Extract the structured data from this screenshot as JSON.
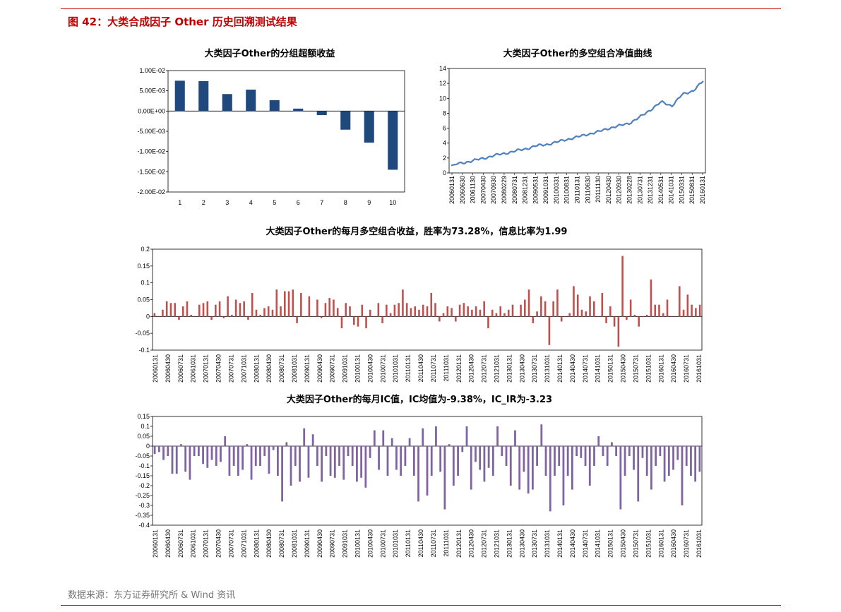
{
  "figure": {
    "title": "图 42：大类合成因子  Other  历史回溯测试结果",
    "source": "数据来源：东方证券研究所  &  Wind 资讯"
  },
  "dates": [
    "20060131",
    "20060430",
    "20060731",
    "20061031",
    "20070131",
    "20070430",
    "20070731",
    "20071031",
    "20080131",
    "20080430",
    "20080731",
    "20081031",
    "20090131",
    "20090430",
    "20090731",
    "20091031",
    "20100131",
    "20100430",
    "20100731",
    "20101031",
    "20110131",
    "20110430",
    "20110731",
    "20111031",
    "20120131",
    "20120430",
    "20120731",
    "20121031",
    "20130131",
    "20130430",
    "20130731",
    "20131031",
    "20140131",
    "20140430",
    "20140731",
    "20141031",
    "20150131",
    "20150430",
    "20150731",
    "20151031",
    "20160131",
    "20160430",
    "20160731",
    "20161031"
  ],
  "dates_nav": [
    "20060131",
    "20060630",
    "20061130",
    "20070430",
    "20070930",
    "20080229",
    "20080731",
    "20081231",
    "20090531",
    "20091031",
    "20100331",
    "20100831",
    "20110131",
    "20110630",
    "20111130",
    "20120430",
    "20120930",
    "20130228",
    "20130731",
    "20131231",
    "20140531",
    "20141031",
    "20150331",
    "20150831",
    "20160131"
  ],
  "colors": {
    "accent": "#c00000",
    "bar1": "#1f497d",
    "line": "#4f81bd",
    "bar_red": "#c0504d",
    "bar_purple": "#8064a2"
  },
  "chart_data": [
    {
      "type": "bar",
      "title": "大类因子Other的分组超额收益",
      "categories": [
        "1",
        "2",
        "3",
        "4",
        "5",
        "6",
        "7",
        "8",
        "9",
        "10"
      ],
      "values": [
        0.0075,
        0.0074,
        0.0042,
        0.0053,
        0.0027,
        0.0006,
        -0.001,
        -0.0046,
        -0.0078,
        -0.0145
      ],
      "ylim": [
        -0.02,
        0.01
      ],
      "yticks": [
        0.01,
        0.005,
        0,
        -0.005,
        -0.01,
        -0.015,
        -0.02
      ],
      "ytick_labels": [
        "1.00E-02",
        "5.00E-03",
        "0.00E+00",
        "-5.00E-03",
        "-1.00E-02",
        "-1.50E-02",
        "-2.00E-02"
      ]
    },
    {
      "type": "line",
      "title": "大类因子Other的多空组合净值曲线",
      "anchors": [
        1.0,
        1.35,
        1.6,
        1.95,
        2.3,
        2.6,
        2.9,
        3.2,
        3.6,
        3.8,
        4.1,
        4.5,
        4.8,
        5.2,
        5.5,
        6.0,
        6.3,
        6.7,
        7.5,
        8.5,
        9.5,
        9.0,
        10.5,
        11.0,
        12.3
      ],
      "ylim": [
        0,
        14
      ],
      "yticks": [
        0,
        2,
        4,
        6,
        8,
        10,
        12,
        14
      ]
    },
    {
      "type": "bar",
      "title": "大类因子Other的每月多空组合收益，胜率为73.28%，信息比率为1.99",
      "values": [
        0.01,
        0.0,
        0.02,
        0.045,
        0.04,
        0.04,
        -0.01,
        0.03,
        0.045,
        0.005,
        0.0,
        0.035,
        0.04,
        0.045,
        -0.01,
        0.035,
        0.045,
        -0.005,
        0.06,
        0.005,
        0.05,
        0.04,
        0.045,
        -0.01,
        0.07,
        0.02,
        0.005,
        0.025,
        0.03,
        0.02,
        0.08,
        0.03,
        0.075,
        0.075,
        0.08,
        -0.02,
        0.07,
        0.0,
        0.06,
        0.0,
        0.05,
        -0.005,
        0.04,
        0.055,
        0.05,
        0.025,
        -0.035,
        0.04,
        0.03,
        -0.025,
        -0.03,
        0.035,
        -0.035,
        0.02,
        0.0,
        0.04,
        -0.02,
        0.035,
        0.01,
        0.035,
        0.04,
        0.08,
        0.04,
        0.025,
        0.03,
        0.02,
        0.035,
        0.03,
        0.07,
        0.04,
        -0.015,
        0.01,
        0.03,
        0.025,
        -0.015,
        0.035,
        0.04,
        0.03,
        0.02,
        0.03,
        0.02,
        0.045,
        -0.035,
        0.02,
        0.01,
        0.03,
        0.01,
        0.02,
        0.035,
        0.0,
        0.035,
        0.05,
        0.08,
        -0.02,
        0.015,
        0.06,
        0.045,
        -0.085,
        0.045,
        0.08,
        -0.015,
        0.0,
        0.01,
        0.09,
        0.065,
        0.02,
        0.015,
        0.06,
        0.045,
        0.0,
        0.07,
        -0.02,
        0.03,
        -0.03,
        -0.09,
        0.18,
        -0.01,
        0.05,
        0.005,
        -0.03,
        0.0,
        0.005,
        0.11,
        0.035,
        0.035,
        0.01,
        0.05,
        0.0,
        0.0,
        0.09,
        0.02,
        0.065,
        0.035,
        0.025,
        0.035
      ],
      "ylim": [
        -0.1,
        0.2
      ],
      "yticks": [
        0.2,
        0.15,
        0.1,
        0.05,
        0,
        -0.05,
        -0.1
      ]
    },
    {
      "type": "bar",
      "title": "大类因子Other的每月IC值，IC均值为-9.38%，IC_IR为-3.23",
      "values": [
        -0.04,
        -0.03,
        -0.07,
        -0.05,
        -0.14,
        -0.14,
        0.01,
        -0.13,
        -0.17,
        -0.05,
        -0.05,
        -0.09,
        -0.11,
        -0.07,
        -0.1,
        -0.08,
        0.05,
        -0.15,
        -0.1,
        -0.15,
        -0.12,
        0.01,
        -0.17,
        -0.1,
        -0.1,
        -0.05,
        -0.14,
        -0.02,
        -0.15,
        -0.28,
        0.02,
        -0.2,
        -0.1,
        -0.18,
        0.09,
        -0.16,
        0.06,
        -0.1,
        -0.18,
        -0.05,
        -0.15,
        -0.16,
        -0.1,
        -0.17,
        -0.05,
        -0.1,
        -0.18,
        -0.16,
        -0.21,
        -0.06,
        0.08,
        -0.12,
        0.08,
        -0.15,
        0.04,
        -0.12,
        -0.15,
        -0.1,
        0.04,
        -0.15,
        -0.28,
        0.09,
        -0.25,
        -0.15,
        0.1,
        -0.13,
        -0.32,
        0.01,
        -0.2,
        -0.15,
        -0.03,
        0.1,
        -0.22,
        -0.08,
        -0.12,
        -0.18,
        -0.11,
        -0.15,
        0.1,
        -0.05,
        -0.1,
        -0.2,
        0.08,
        -0.22,
        -0.13,
        -0.24,
        -0.22,
        -0.1,
        0.11,
        -0.15,
        -0.33,
        -0.15,
        -0.1,
        -0.3,
        -0.15,
        -0.22,
        -0.05,
        -0.06,
        -0.1,
        -0.2,
        -0.1,
        0.05,
        -0.05,
        -0.1,
        0.02,
        -0.05,
        -0.32,
        -0.15,
        -0.05,
        -0.12,
        -0.28,
        -0.06,
        -0.15,
        -0.22,
        -0.1,
        -0.05,
        -0.18,
        -0.15,
        -0.12,
        -0.07,
        -0.3,
        -0.1,
        -0.15,
        -0.18,
        -0.13
      ],
      "ylim": [
        -0.4,
        0.15
      ],
      "yticks": [
        0.15,
        0.1,
        0.05,
        0,
        -0.05,
        -0.1,
        -0.15,
        -0.2,
        -0.25,
        -0.3,
        -0.35,
        -0.4
      ]
    }
  ]
}
